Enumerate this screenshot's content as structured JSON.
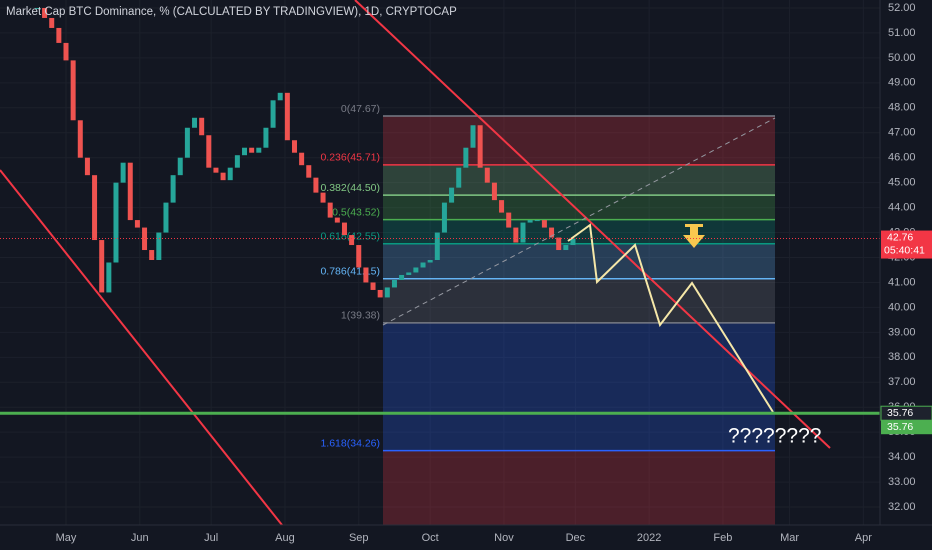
{
  "chart_data": {
    "type": "candlestick",
    "title": "Market Cap BTC Dominance, % (CALCULATED BY TRADINGVIEW), 1D, CRYPTOCAP",
    "x": [
      -12,
      -9,
      -6,
      -3,
      0,
      3,
      6,
      9,
      12,
      15,
      18,
      21,
      24,
      27,
      30,
      33,
      36,
      39,
      42,
      45,
      48,
      51,
      54,
      57,
      60,
      63,
      66,
      69,
      72,
      75,
      78,
      81,
      84,
      87,
      90,
      93,
      96,
      99,
      102,
      105,
      108,
      111,
      114,
      117,
      120,
      123,
      126,
      129,
      132,
      135,
      138,
      141,
      144,
      147,
      150,
      153,
      156,
      159,
      162,
      165,
      168,
      171,
      174,
      177,
      180,
      183,
      186,
      189,
      192,
      195,
      198,
      201,
      204,
      207,
      210,
      213
    ],
    "close": [
      52.0,
      51.6,
      51.2,
      50.6,
      49.9,
      47.5,
      46.0,
      45.3,
      42.7,
      40.6,
      41.8,
      45.0,
      45.8,
      43.5,
      43.2,
      42.3,
      41.9,
      43.0,
      44.2,
      45.3,
      46.0,
      47.2,
      47.6,
      46.9,
      45.6,
      45.4,
      45.1,
      45.6,
      46.1,
      46.4,
      46.2,
      46.4,
      47.2,
      48.3,
      48.6,
      46.7,
      46.2,
      45.7,
      45.2,
      44.6,
      44.2,
      43.6,
      43.4,
      42.9,
      42.5,
      41.6,
      41.0,
      40.7,
      40.4,
      40.8,
      41.1,
      41.3,
      41.4,
      41.6,
      41.8,
      41.9,
      43.0,
      44.2,
      44.8,
      45.6,
      46.4,
      47.3,
      45.6,
      45.0,
      44.3,
      43.8,
      43.2,
      42.6,
      43.4,
      43.5,
      43.5,
      43.2,
      42.8,
      42.3,
      42.5,
      42.76
    ],
    "up_color": "#26a69a",
    "down_color": "#ef5350",
    "xlim": [
      -27.73,
      342.0
    ],
    "ylim": [
      31.28,
      52.32
    ],
    "xticks": [
      {
        "value": 0,
        "label": "May"
      },
      {
        "value": 31,
        "label": "Jun"
      },
      {
        "value": 61,
        "label": "Jul"
      },
      {
        "value": 92,
        "label": "Aug"
      },
      {
        "value": 123,
        "label": "Sep"
      },
      {
        "value": 153,
        "label": "Oct"
      },
      {
        "value": 184,
        "label": "Nov"
      },
      {
        "value": 214,
        "label": "Dec"
      },
      {
        "value": 245,
        "label": "2022"
      },
      {
        "value": 276,
        "label": "Feb"
      },
      {
        "value": 304,
        "label": "Mar"
      },
      {
        "value": 335,
        "label": "Apr"
      }
    ],
    "yticks": [
      {
        "value": 32,
        "label": "32.00"
      },
      {
        "value": 33,
        "label": "33.00"
      },
      {
        "value": 34,
        "label": "34.00"
      },
      {
        "value": 35,
        "label": "35.00"
      },
      {
        "value": 36,
        "label": "36.00"
      },
      {
        "value": 37,
        "label": "37.00"
      },
      {
        "value": 38,
        "label": "38.00"
      },
      {
        "value": 39,
        "label": "39.00"
      },
      {
        "value": 40,
        "label": "40.00"
      },
      {
        "value": 41,
        "label": "41.00"
      },
      {
        "value": 42,
        "label": "42.00"
      },
      {
        "value": 43,
        "label": "43.00"
      },
      {
        "value": 44,
        "label": "44.00"
      },
      {
        "value": 45,
        "label": "45.00"
      },
      {
        "value": 46,
        "label": "46.00"
      },
      {
        "value": 47,
        "label": "47.00"
      },
      {
        "value": 48,
        "label": "48.00"
      },
      {
        "value": 49,
        "label": "49.00"
      },
      {
        "value": 50,
        "label": "50.00"
      },
      {
        "value": 51,
        "label": "51.00"
      },
      {
        "value": 52,
        "label": "52.00"
      }
    ],
    "grid": true,
    "fib_levels": [
      {
        "value": 47.67,
        "label": "0(47.67)",
        "color": "#787b86"
      },
      {
        "value": 45.71,
        "label": "0.236(45.71)",
        "color": "#f23645"
      },
      {
        "value": 44.5,
        "label": "0.382(44.50)",
        "color": "#81c784"
      },
      {
        "value": 43.52,
        "label": "0.5(43.52)",
        "color": "#4caf50"
      },
      {
        "value": 42.55,
        "label": "0.618(42.55)",
        "color": "#089981"
      },
      {
        "value": 41.15,
        "label": "0.786(41.15)",
        "color": "#64b5f6"
      },
      {
        "value": 39.38,
        "label": "1(39.38)",
        "color": "#787b86"
      },
      {
        "value": 34.26,
        "label": "1.618(34.26)",
        "color": "#2962ff"
      }
    ],
    "support_line": {
      "value": 35.76,
      "label": "35.76",
      "color": "#4caf50"
    },
    "last_price": {
      "value": 42.76,
      "label": "42.76",
      "countdown": "05:40:41",
      "color": "#f23645"
    },
    "annotation": "????????"
  }
}
